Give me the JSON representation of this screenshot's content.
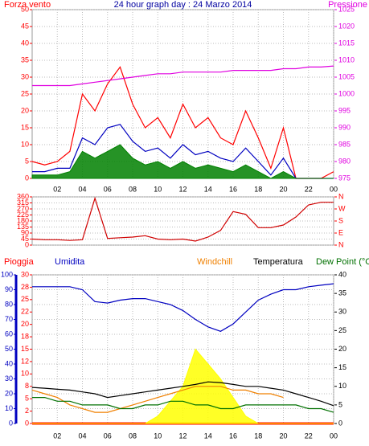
{
  "chart_data": [
    {
      "type": "line",
      "title": "24 hour graph day : 24 Marzo 2014",
      "title_color": "#0000a0",
      "x": [
        0,
        1,
        2,
        3,
        4,
        5,
        6,
        7,
        8,
        9,
        10,
        11,
        12,
        13,
        14,
        15,
        16,
        17,
        18,
        19,
        20,
        21,
        22,
        23,
        24
      ],
      "xlim": [
        0,
        24
      ],
      "xticks": [
        {
          "value": 2,
          "label": "02"
        },
        {
          "value": 4,
          "label": "04"
        },
        {
          "value": 6,
          "label": "06"
        },
        {
          "value": 8,
          "label": "08"
        },
        10,
        12,
        14,
        16,
        18,
        20,
        22,
        {
          "value": 24,
          "label": "00"
        }
      ],
      "ylim": [
        0,
        50
      ],
      "yticks": [
        0,
        5,
        10,
        15,
        20,
        25,
        30,
        35,
        40,
        45,
        50
      ],
      "y_color": "#ff0000",
      "y2lim": [
        975,
        1025
      ],
      "y2ticks": [
        975,
        980,
        985,
        990,
        995,
        1000,
        1005,
        1010,
        1015,
        1020,
        1025
      ],
      "y2_color": "#e000e0",
      "grid": true,
      "series": [
        {
          "name": "Forza vento",
          "color": "#ff0000",
          "values": [
            5,
            4,
            5,
            8,
            25,
            20,
            28,
            33,
            22,
            15,
            18,
            12,
            22,
            15,
            18,
            12,
            10,
            20,
            12,
            3,
            15,
            0,
            0,
            0,
            2
          ]
        },
        {
          "color": "#0000c0",
          "values": [
            2,
            2,
            3,
            3,
            12,
            10,
            15,
            16,
            11,
            8,
            9,
            6,
            10,
            7,
            8,
            6,
            5,
            9,
            5,
            1,
            6,
            0,
            0,
            0,
            0
          ]
        },
        {
          "color": "#008000",
          "area": true,
          "values": [
            1,
            1,
            1,
            2,
            8,
            6,
            8,
            10,
            6,
            4,
            5,
            3,
            5,
            3,
            4,
            3,
            2,
            4,
            2,
            0,
            2,
            0,
            0,
            0,
            0
          ]
        },
        {
          "name": "Pressione",
          "color": "#e000e0",
          "axis": "y2",
          "values": [
            1002.5,
            1002.5,
            1002.5,
            1002.5,
            1003,
            1003.5,
            1004,
            1004.5,
            1005,
            1005.5,
            1006,
            1006,
            1006.5,
            1006.5,
            1006.5,
            1006.5,
            1007,
            1007,
            1007,
            1007,
            1007.5,
            1007.5,
            1008,
            1008,
            1008.3
          ]
        }
      ]
    },
    {
      "type": "line",
      "x": [
        0,
        1,
        2,
        3,
        4,
        5,
        6,
        7,
        8,
        9,
        10,
        11,
        12,
        13,
        14,
        15,
        16,
        17,
        18,
        19,
        20,
        21,
        22,
        23,
        24
      ],
      "xlim": [
        0,
        24
      ],
      "ylim": [
        0,
        360
      ],
      "yticks": [
        0,
        45,
        90,
        135,
        180,
        225,
        270,
        315,
        360
      ],
      "y_color": "#ff0000",
      "y2lim": [
        0,
        360
      ],
      "y2ticks": [
        {
          "value": 360,
          "label": "N"
        },
        {
          "value": 270,
          "label": "W"
        },
        {
          "value": 180,
          "label": "S"
        },
        {
          "value": 90,
          "label": "E"
        },
        {
          "value": 0,
          "label": "N"
        }
      ],
      "y2_color": "#ff0000",
      "grid": true,
      "series": [
        {
          "color": "#d00000",
          "values": [
            45,
            40,
            40,
            35,
            40,
            350,
            50,
            55,
            60,
            70,
            45,
            40,
            45,
            30,
            60,
            110,
            250,
            230,
            130,
            130,
            150,
            210,
            300,
            320,
            320
          ]
        }
      ]
    },
    {
      "type": "line",
      "x": [
        0,
        1,
        2,
        3,
        4,
        5,
        6,
        7,
        8,
        9,
        10,
        11,
        12,
        13,
        14,
        15,
        16,
        17,
        18,
        19,
        20,
        21,
        22,
        23,
        24
      ],
      "xlim": [
        0,
        24
      ],
      "xticks": [
        {
          "value": 2,
          "label": "02"
        },
        {
          "value": 4,
          "label": "04"
        },
        {
          "value": 6,
          "label": "06"
        },
        {
          "value": 8,
          "label": "08"
        },
        10,
        12,
        14,
        16,
        18,
        20,
        22,
        {
          "value": 24,
          "label": "00"
        }
      ],
      "ylim": [
        0,
        100
      ],
      "yticks": [
        0,
        10,
        20,
        30,
        40,
        50,
        60,
        70,
        80,
        90,
        100
      ],
      "y_color": "#0000c0",
      "y3lim": [
        0,
        30
      ],
      "y3ticks": [
        0,
        {
          "value": 2.5,
          "label": "2"
        },
        5,
        {
          "value": 7.5,
          "label": "8"
        },
        10,
        {
          "value": 12.5,
          "label": "12"
        },
        15,
        {
          "value": 17.5,
          "label": "18"
        },
        20,
        {
          "value": 22.5,
          "label": "22"
        },
        25,
        {
          "value": 27.5,
          "label": "28"
        },
        30
      ],
      "y3_color": "#ff0000",
      "y2lim": [
        0,
        40
      ],
      "y2ticks": [
        0,
        5,
        10,
        15,
        20,
        25,
        30,
        35,
        40
      ],
      "y2_color": "#000000",
      "grid": true,
      "series": [
        {
          "name": "Pioggia",
          "color": "#ff0000",
          "axis": "y3",
          "values": [
            0,
            0,
            0,
            0,
            0,
            0,
            0,
            0,
            0,
            0,
            0,
            0,
            0,
            0,
            0,
            0,
            0,
            0,
            0,
            0,
            0,
            0,
            0,
            0,
            0
          ]
        },
        {
          "name": "Umidita",
          "color": "#0000c0",
          "values": [
            92,
            92,
            92,
            92,
            90,
            82,
            81,
            83,
            84,
            84,
            82,
            80,
            76,
            70,
            65,
            62,
            67,
            75,
            83,
            87,
            90,
            90,
            92,
            93,
            94
          ]
        },
        {
          "color": "#ffff00",
          "area": true,
          "axis": "y2",
          "values": [
            0,
            0,
            0,
            0,
            0,
            0,
            0,
            0,
            0,
            0,
            2,
            6,
            10,
            20,
            16,
            12,
            7,
            2,
            0,
            0,
            0,
            0,
            0,
            0,
            0
          ]
        },
        {
          "name": "Windchill",
          "color": "#f08000",
          "axis": "y2",
          "values": [
            9,
            8,
            7,
            5,
            4,
            3,
            3,
            4,
            5,
            6,
            7,
            8,
            9,
            10,
            10,
            10,
            9,
            9,
            8,
            8,
            7,
            null,
            null,
            null,
            null
          ]
        },
        {
          "name": "Temperatura",
          "color": "#000000",
          "axis": "y2",
          "values": [
            9.7,
            9.5,
            9.2,
            9,
            8.5,
            8,
            7,
            7.5,
            8,
            8.5,
            9,
            9.5,
            10,
            10.5,
            11.2,
            11,
            10.5,
            10,
            10,
            9.5,
            9,
            8,
            7,
            6,
            4.8
          ]
        },
        {
          "name": "Dew Point (°C",
          "color": "#007000",
          "axis": "y2",
          "values": [
            7,
            7,
            6,
            6,
            5,
            5,
            5,
            4,
            4,
            5,
            5,
            6,
            6,
            5,
            5,
            4,
            4,
            5,
            5,
            5,
            5,
            5,
            4,
            4,
            3
          ]
        }
      ]
    }
  ]
}
